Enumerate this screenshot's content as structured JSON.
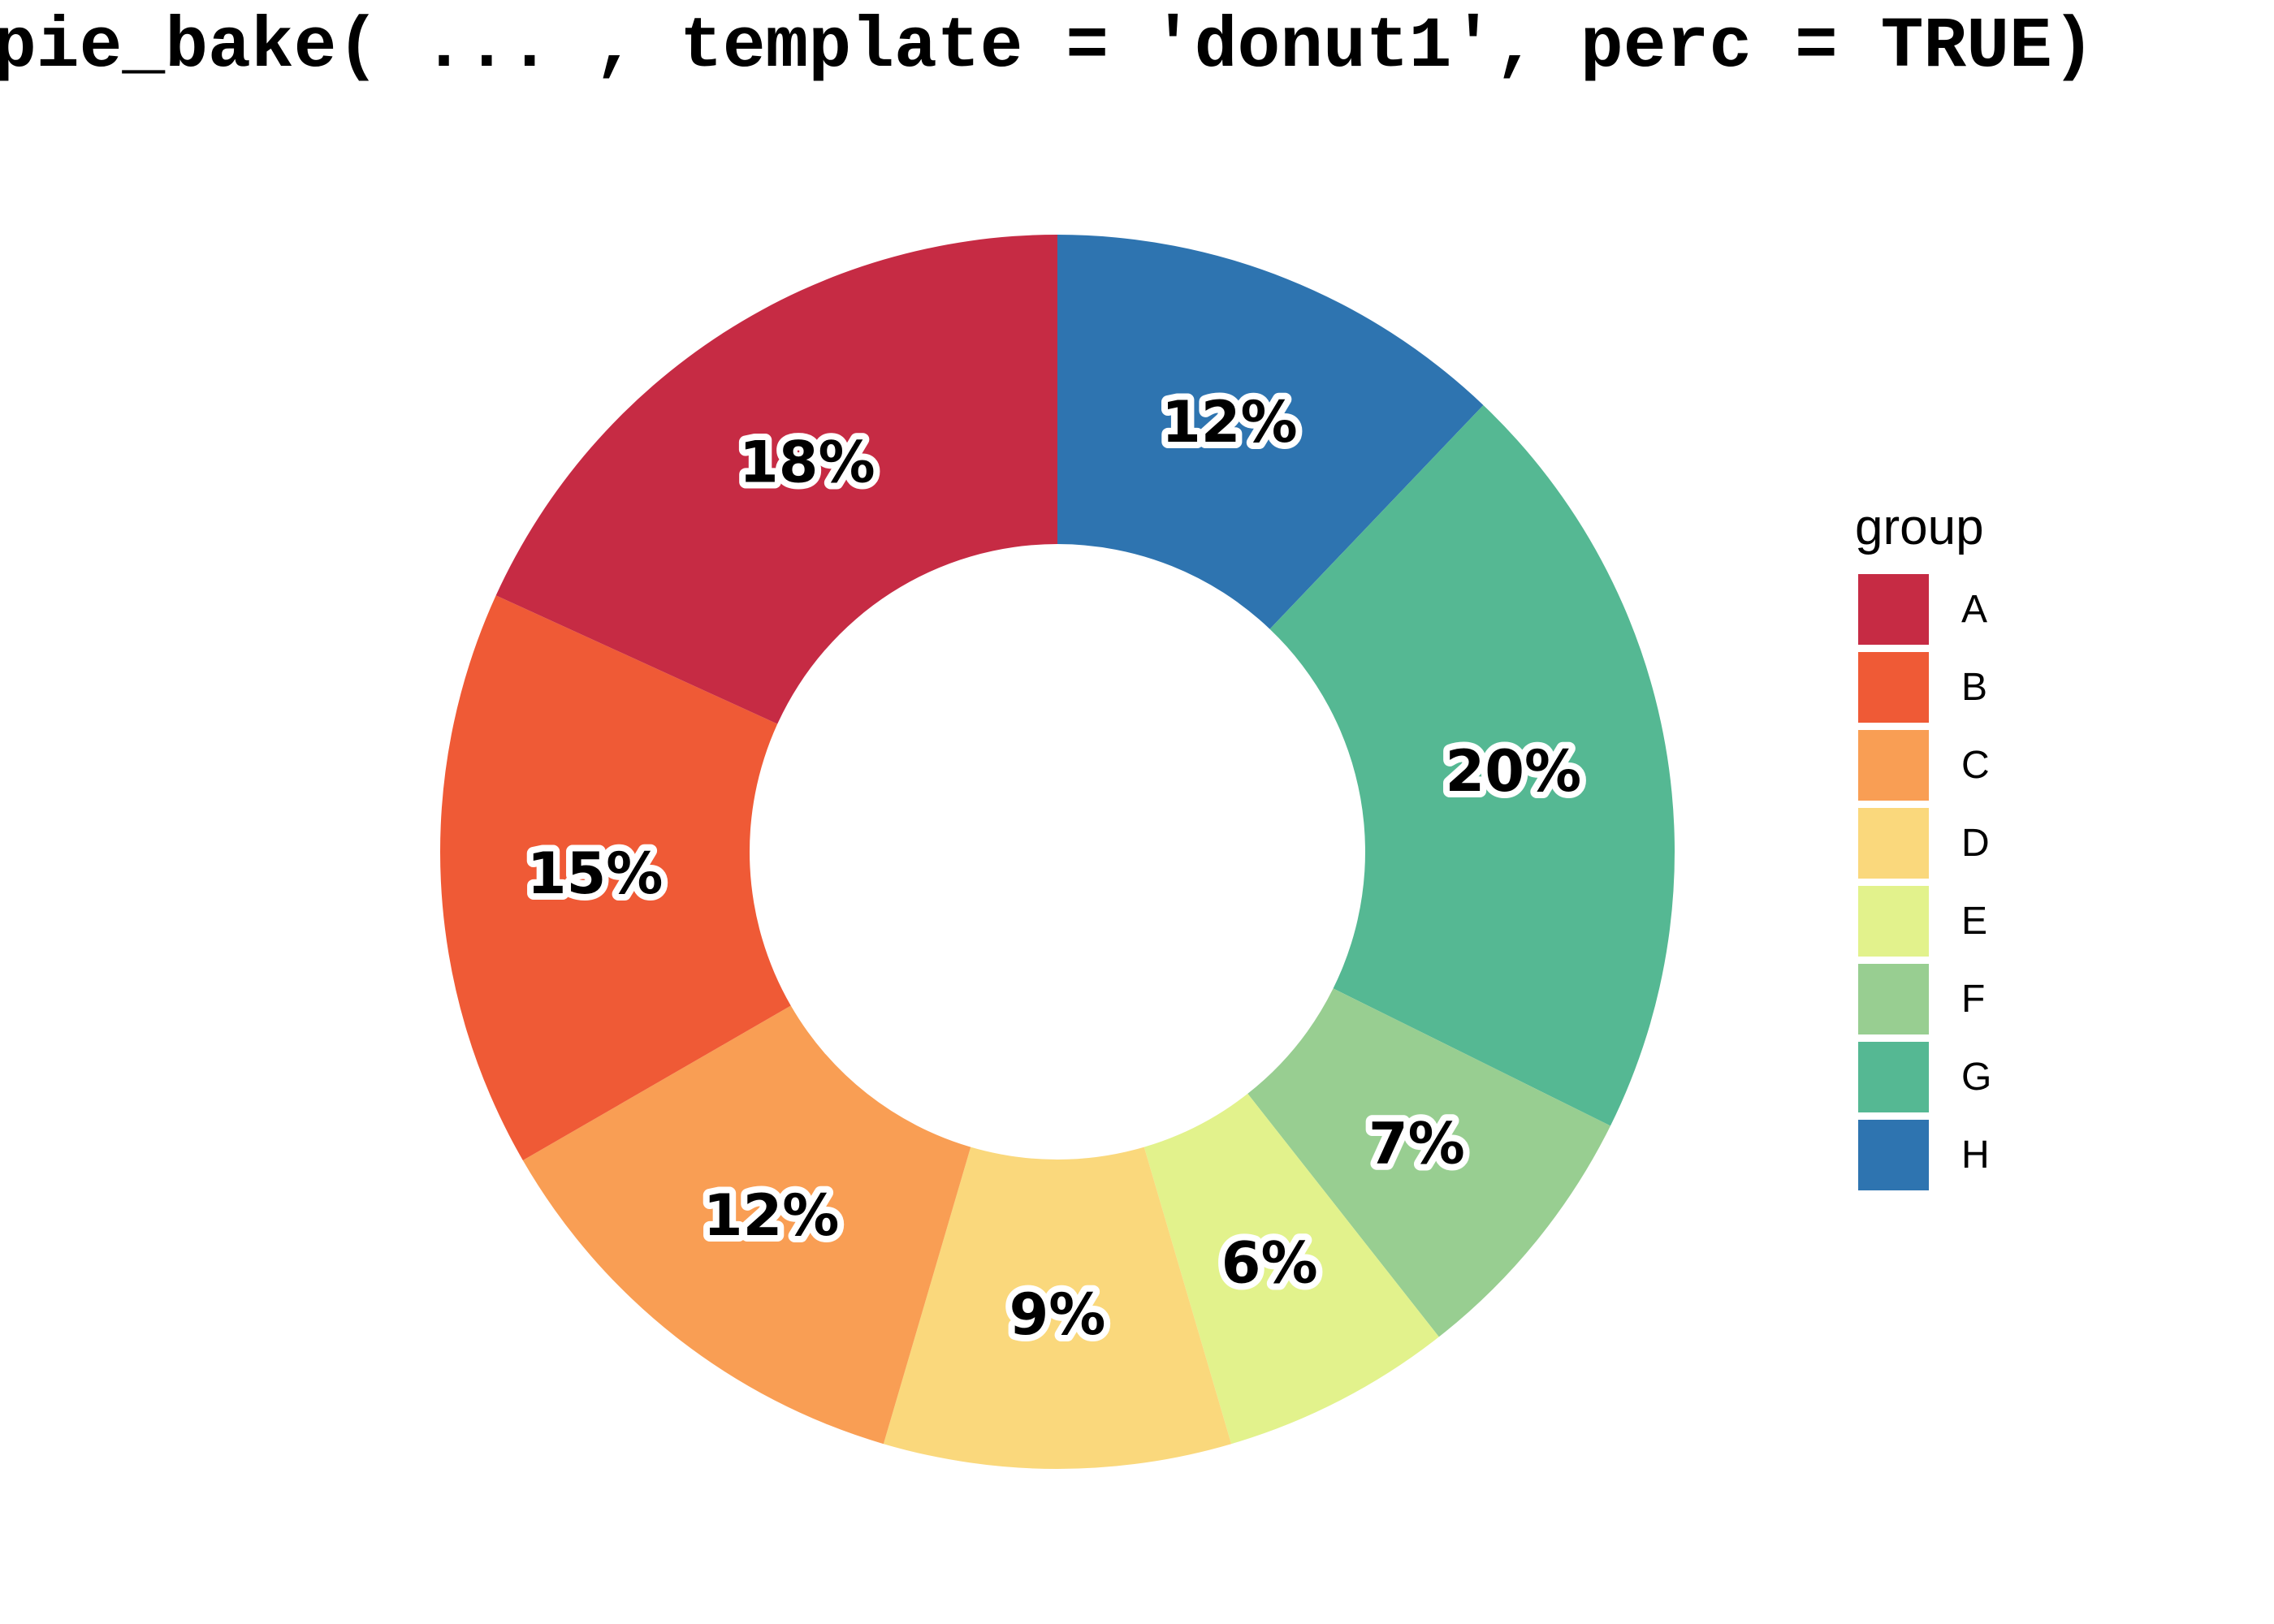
{
  "title": "pie_bake( ... , template = 'donut1', perc = TRUE)",
  "chart_data": {
    "type": "donut",
    "title": "pie_bake( ... , template = 'donut1', perc = TRUE)",
    "legend_title": "group",
    "legend_position": "right",
    "categories": [
      "A",
      "B",
      "C",
      "D",
      "E",
      "F",
      "G",
      "H"
    ],
    "values": [
      18,
      15,
      12,
      9,
      6,
      7,
      20,
      12
    ],
    "labels": [
      "18%",
      "15%",
      "12%",
      "9%",
      "6%",
      "7%",
      "20%",
      "12%"
    ],
    "colors": [
      "#C62B44",
      "#EF5A36",
      "#F99E54",
      "#FAD87C",
      "#E2F28C",
      "#98CE91",
      "#55B893",
      "#2E74B0"
    ],
    "start": "top",
    "direction": "counterclockwise",
    "inner_radius_ratio": 0.5,
    "label_color": "#000000",
    "label_halo_color": "#FFFFFF",
    "background": "#FFFFFF"
  }
}
